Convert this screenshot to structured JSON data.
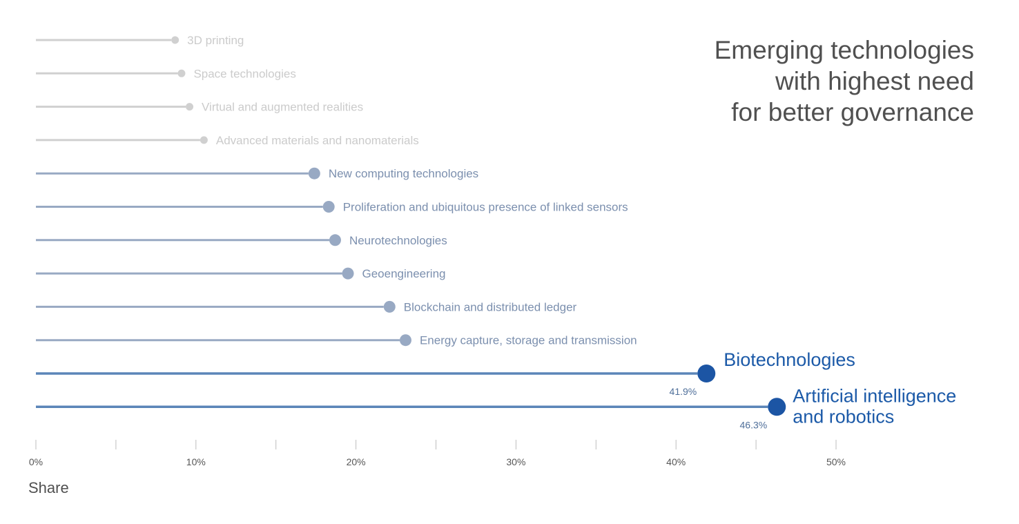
{
  "chart_data": {
    "type": "lollipop",
    "title_lines": [
      "Emerging technologies",
      "with highest need",
      "for better governance"
    ],
    "xlabel": "Share",
    "xlim": [
      0,
      50
    ],
    "x_ticks": [
      "0%",
      "10%",
      "20%",
      "30%",
      "40%",
      "50%"
    ],
    "grid": false,
    "colors": {
      "tier_low": "#d0d0d0",
      "tier_mid": "#98a9c3",
      "tier_high": "#5b85b8",
      "highlight_dot": "#1c55a4",
      "label_low": "#cbcbcb",
      "label_mid": "#7b8fae",
      "label_high": "#1c5aa8",
      "value_label": "#4f6f9a",
      "axis": "#bdbdbd",
      "tick_label": "#555555"
    },
    "series": [
      {
        "label": "3D printing",
        "value": 8.7,
        "tier": "low"
      },
      {
        "label": "Space technologies",
        "value": 9.1,
        "tier": "low"
      },
      {
        "label": "Virtual and augmented realities",
        "value": 9.6,
        "tier": "low"
      },
      {
        "label": "Advanced materials and nanomaterials",
        "value": 10.5,
        "tier": "low"
      },
      {
        "label": "New computing technologies",
        "value": 17.4,
        "tier": "mid"
      },
      {
        "label": "Proliferation and ubiquitous presence of linked sensors",
        "value": 18.3,
        "tier": "mid"
      },
      {
        "label": "Neurotechnologies",
        "value": 18.7,
        "tier": "mid"
      },
      {
        "label": "Geoengineering",
        "value": 19.5,
        "tier": "mid"
      },
      {
        "label": "Blockchain and distributed ledger",
        "value": 22.1,
        "tier": "mid"
      },
      {
        "label": "Energy capture, storage and transmission",
        "value": 23.1,
        "tier": "mid"
      },
      {
        "label": "Biotechnologies",
        "value": 41.9,
        "tier": "high",
        "value_label": "41.9%"
      },
      {
        "label_lines": [
          "Artificial intelligence",
          "and robotics"
        ],
        "value": 46.3,
        "tier": "high",
        "value_label": "46.3%"
      }
    ]
  }
}
